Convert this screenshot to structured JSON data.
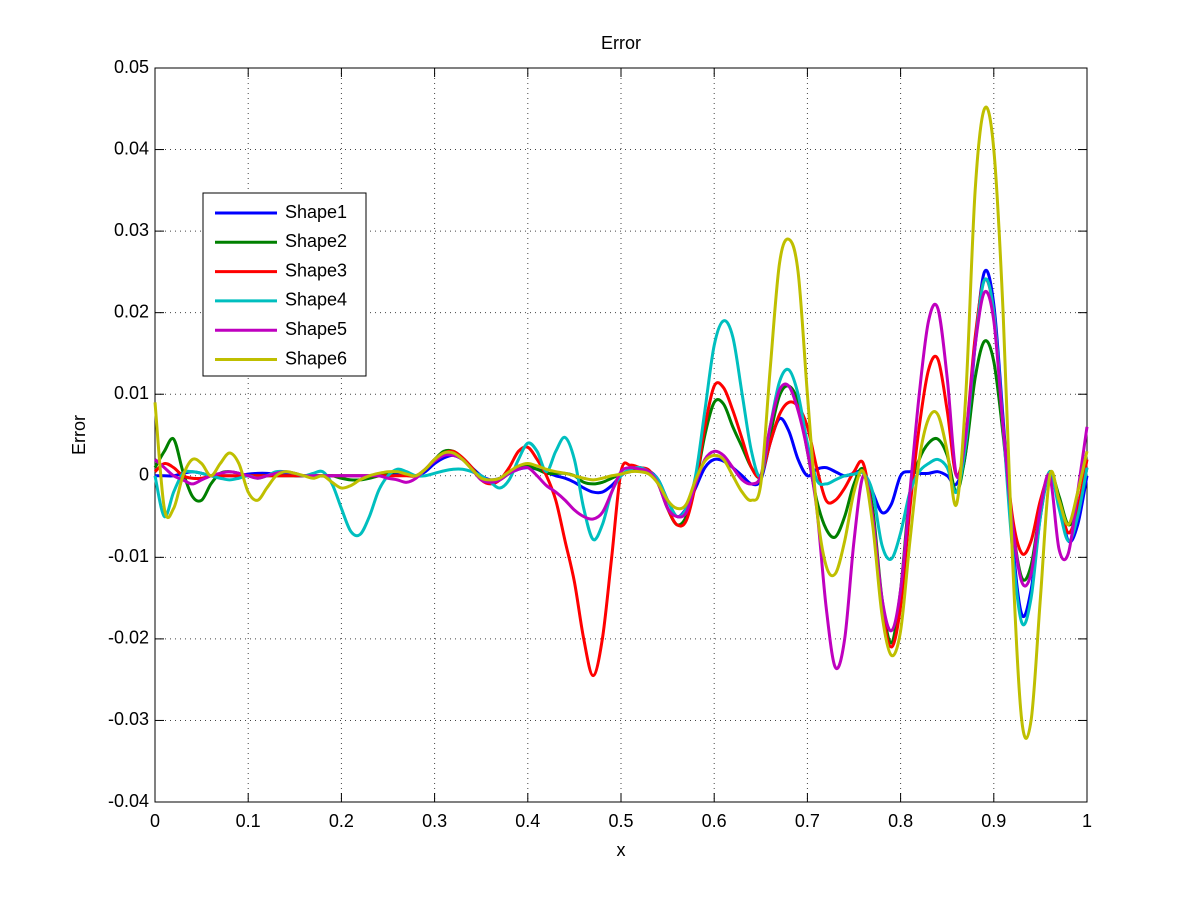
{
  "chart_data": {
    "type": "line",
    "title": "Error",
    "x_label": "x",
    "y_label": "Error",
    "x": [
      0,
      0.01,
      0.02,
      0.03,
      0.04,
      0.05,
      0.06,
      0.07,
      0.08,
      0.09,
      0.1,
      0.11,
      0.12,
      0.13,
      0.14,
      0.15,
      0.16,
      0.17,
      0.18,
      0.19,
      0.2,
      0.21,
      0.22,
      0.23,
      0.24,
      0.25,
      0.26,
      0.27,
      0.28,
      0.29,
      0.3,
      0.31,
      0.32,
      0.33,
      0.34,
      0.35,
      0.36,
      0.37,
      0.38,
      0.39,
      0.4,
      0.41,
      0.42,
      0.43,
      0.44,
      0.45,
      0.46,
      0.47,
      0.48,
      0.49,
      0.5,
      0.51,
      0.52,
      0.53,
      0.54,
      0.55,
      0.56,
      0.57,
      0.58,
      0.59,
      0.6,
      0.61,
      0.62,
      0.63,
      0.64,
      0.65,
      0.66,
      0.67,
      0.68,
      0.69,
      0.7,
      0.71,
      0.72,
      0.73,
      0.74,
      0.75,
      0.76,
      0.77,
      0.78,
      0.79,
      0.8,
      0.81,
      0.82,
      0.83,
      0.84,
      0.85,
      0.86,
      0.87,
      0.88,
      0.89,
      0.9,
      0.91,
      0.92,
      0.93,
      0.94,
      0.95,
      0.96,
      0.97,
      0.98,
      0.99,
      1
    ],
    "series": [
      {
        "name": "Shape1",
        "color": "#0000ff",
        "values": [
          0,
          0,
          0,
          0.0003,
          0.0005,
          0.0003,
          0,
          0,
          0,
          0,
          0.0002,
          0.0003,
          0.0003,
          0.0002,
          0.0002,
          0,
          0,
          0,
          0,
          0,
          0,
          0,
          0,
          0,
          0,
          0,
          0.0003,
          0.0003,
          0,
          0.0005,
          0.0015,
          0.0022,
          0.0025,
          0.002,
          0.001,
          0,
          -0.0005,
          -0.0003,
          0.0003,
          0.0008,
          0.001,
          0.0008,
          0.0004,
          0,
          -0.0003,
          -0.0008,
          -0.0015,
          -0.002,
          -0.002,
          -0.0012,
          0,
          0.0008,
          0.001,
          0.0006,
          -0.0005,
          -0.003,
          -0.005,
          -0.004,
          -0.0015,
          0.001,
          0.002,
          0.0018,
          0.001,
          0,
          -0.001,
          -0.0005,
          0.004,
          0.007,
          0.0055,
          0.002,
          0,
          0.0008,
          0.001,
          0.0005,
          0,
          0.0003,
          0.0005,
          -0.002,
          -0.0045,
          -0.0035,
          0,
          0.0005,
          0.0003,
          0.0003,
          0.0005,
          0,
          -0.001,
          0.003,
          0.016,
          0.025,
          0.021,
          0.007,
          -0.008,
          -0.017,
          -0.014,
          -0.005,
          0.0005,
          -0.003,
          -0.008,
          -0.006,
          0
        ]
      },
      {
        "name": "Shape2",
        "color": "#008000",
        "values": [
          0.001,
          0.003,
          0.0045,
          0.0005,
          -0.0025,
          -0.003,
          -0.001,
          0.0003,
          0.0005,
          0.0003,
          0,
          0,
          0,
          0,
          0,
          0,
          0,
          0,
          0,
          0,
          -0.0003,
          -0.0005,
          -0.0005,
          -0.0003,
          0,
          0.0003,
          0.0005,
          0.0003,
          0,
          0.0008,
          0.002,
          0.003,
          0.003,
          0.0022,
          0.001,
          -0.0003,
          -0.0008,
          -0.0005,
          0.0003,
          0.001,
          0.0012,
          0.0008,
          0.0003,
          0.0003,
          0.0003,
          0,
          -0.0008,
          -0.001,
          -0.0008,
          -0.0003,
          0.0002,
          0.0005,
          0.0008,
          0.0005,
          -0.001,
          -0.004,
          -0.006,
          -0.005,
          -0.001,
          0.005,
          0.009,
          0.0088,
          0.006,
          0.0035,
          0.001,
          0,
          0.005,
          0.0098,
          0.011,
          0.009,
          0.003,
          -0.003,
          -0.0065,
          -0.0075,
          -0.005,
          -0.001,
          0.0008,
          -0.004,
          -0.015,
          -0.0205,
          -0.014,
          -0.002,
          0.002,
          0.004,
          0.0045,
          0.0025,
          -0.002,
          0.003,
          0.012,
          0.0165,
          0.014,
          0.005,
          -0.006,
          -0.0125,
          -0.011,
          -0.004,
          0.0005,
          -0.0025,
          -0.006,
          -0.004,
          0.001
        ]
      },
      {
        "name": "Shape3",
        "color": "#ff0000",
        "values": [
          0.0005,
          0.0015,
          0.001,
          0,
          -0.0003,
          -0.0003,
          0,
          0,
          0,
          0,
          0,
          0,
          0,
          0,
          0,
          0,
          0,
          0,
          0,
          0,
          0,
          0,
          0,
          0,
          0,
          0,
          0,
          0,
          0,
          0.0008,
          0.002,
          0.0028,
          0.003,
          0.0022,
          0.001,
          -0.0005,
          -0.001,
          -0.0005,
          0.001,
          0.003,
          0.0035,
          0.002,
          0,
          -0.003,
          -0.008,
          -0.013,
          -0.02,
          -0.0245,
          -0.02,
          -0.01,
          0.0005,
          0.0013,
          0.001,
          0.0007,
          -0.001,
          -0.004,
          -0.006,
          -0.0055,
          -0.001,
          0.006,
          0.011,
          0.0108,
          0.008,
          0.0045,
          0.001,
          0,
          0.004,
          0.0075,
          0.009,
          0.0085,
          0.006,
          0.001,
          -0.003,
          -0.003,
          -0.0015,
          0.0005,
          0.0015,
          -0.005,
          -0.016,
          -0.021,
          -0.016,
          -0.004,
          0.006,
          0.013,
          0.0143,
          0.008,
          0,
          0.005,
          0.017,
          0.024,
          0.02,
          0.006,
          -0.005,
          -0.0095,
          -0.008,
          -0.003,
          0,
          -0.003,
          -0.007,
          -0.004,
          0.002
        ]
      },
      {
        "name": "Shape4",
        "color": "#00bfbf",
        "values": [
          0,
          -0.005,
          -0.002,
          0.0003,
          0.0005,
          0.0003,
          0,
          -0.0003,
          -0.0005,
          -0.0003,
          0,
          -0.0003,
          0,
          0.0005,
          0.0005,
          0.0003,
          0,
          0.0003,
          0.0005,
          -0.001,
          -0.004,
          -0.0068,
          -0.0072,
          -0.005,
          -0.0018,
          0,
          0.0008,
          0.0005,
          0,
          0,
          0.0003,
          0.0006,
          0.0008,
          0.0008,
          0.0005,
          0,
          -0.0008,
          -0.0015,
          -0.0005,
          0.002,
          0.004,
          0.003,
          0.0005,
          0.003,
          0.0047,
          0.002,
          -0.004,
          -0.0078,
          -0.006,
          -0.002,
          0,
          0.0008,
          0.001,
          0.0005,
          -0.0005,
          -0.003,
          -0.005,
          -0.004,
          0,
          0.008,
          0.016,
          0.019,
          0.017,
          0.01,
          0.003,
          0,
          0.006,
          0.0115,
          0.013,
          0.01,
          0.004,
          -0.0005,
          -0.001,
          -0.0005,
          0,
          0.0002,
          0.0003,
          -0.002,
          -0.0085,
          -0.0102,
          -0.007,
          -0.002,
          0.0005,
          0.0015,
          0.002,
          0.001,
          -0.002,
          0.004,
          0.016,
          0.024,
          0.02,
          0.006,
          -0.009,
          -0.018,
          -0.015,
          -0.005,
          0.0005,
          -0.004,
          -0.008,
          -0.005,
          0.001
        ]
      },
      {
        "name": "Shape5",
        "color": "#bf00bf",
        "values": [
          0.002,
          0.001,
          0,
          -0.0005,
          -0.001,
          -0.0005,
          0,
          0.0003,
          0.0005,
          0.0003,
          0,
          -0.0003,
          0,
          0.0003,
          0.0005,
          0.0003,
          0,
          0,
          0,
          0,
          0,
          0,
          0,
          0,
          0,
          -0.0003,
          -0.0005,
          -0.0008,
          -0.0003,
          0.0008,
          0.0018,
          0.0025,
          0.0025,
          0.002,
          0.0008,
          -0.0005,
          -0.0008,
          -0.0005,
          0.0003,
          0.0008,
          0.001,
          0,
          -0.0012,
          -0.002,
          -0.003,
          -0.0042,
          -0.005,
          -0.0053,
          -0.0045,
          -0.002,
          0.0005,
          0.001,
          0.0008,
          0.0005,
          -0.001,
          -0.004,
          -0.005,
          -0.0045,
          -0.001,
          0.002,
          0.003,
          0.0025,
          0.001,
          -0.0005,
          -0.001,
          0,
          0.006,
          0.0105,
          0.011,
          0.008,
          0.003,
          -0.004,
          -0.016,
          -0.0235,
          -0.02,
          -0.008,
          0,
          -0.005,
          -0.015,
          -0.019,
          -0.014,
          -0.002,
          0.01,
          0.019,
          0.0205,
          0.012,
          0,
          0.005,
          0.016,
          0.0225,
          0.019,
          0.006,
          -0.006,
          -0.013,
          -0.012,
          -0.004,
          0,
          -0.009,
          -0.0095,
          -0.002,
          0.006
        ]
      },
      {
        "name": "Shape6",
        "color": "#bfbf00",
        "values": [
          0.009,
          -0.004,
          -0.004,
          0,
          0.002,
          0.0015,
          0,
          0.0015,
          0.0028,
          0.0015,
          -0.002,
          -0.003,
          -0.0015,
          0,
          0.0005,
          0.0003,
          0,
          -0.0003,
          0,
          -0.0008,
          -0.0015,
          -0.0012,
          -0.0005,
          0,
          0.0003,
          0.0005,
          0.0005,
          0.0002,
          0,
          0.0008,
          0.002,
          0.0028,
          0.0028,
          0.002,
          0.0008,
          -0.0003,
          -0.0005,
          -0.0003,
          0.0005,
          0.0012,
          0.0015,
          0.0012,
          0.0008,
          0.0005,
          0.0003,
          0,
          -0.0003,
          -0.0005,
          -0.0003,
          0,
          0.0002,
          0.0005,
          0.0005,
          0.0002,
          -0.001,
          -0.003,
          -0.004,
          -0.0035,
          -0.0005,
          0.0018,
          0.0025,
          0.002,
          0,
          -0.002,
          -0.003,
          -0.001,
          0.013,
          0.026,
          0.029,
          0.025,
          0.01,
          -0.004,
          -0.011,
          -0.012,
          -0.008,
          -0.002,
          0.0005,
          -0.006,
          -0.017,
          -0.022,
          -0.019,
          -0.008,
          0.002,
          0.007,
          0.0075,
          0.003,
          -0.0035,
          0.01,
          0.035,
          0.045,
          0.04,
          0.02,
          -0.01,
          -0.03,
          -0.03,
          -0.015,
          0,
          -0.003,
          -0.006,
          -0.002,
          0.003
        ]
      }
    ],
    "xlim": [
      0,
      1
    ],
    "xticks": [
      0,
      0.1,
      0.2,
      0.3,
      0.4,
      0.5,
      0.6,
      0.7,
      0.8,
      0.9,
      1
    ],
    "ylim": [
      -0.04,
      0.05
    ],
    "yticks": [
      -0.04,
      -0.03,
      -0.02,
      -0.01,
      0,
      0.01,
      0.02,
      0.03,
      0.04,
      0.05
    ],
    "grid": true,
    "legend": "upper left"
  }
}
